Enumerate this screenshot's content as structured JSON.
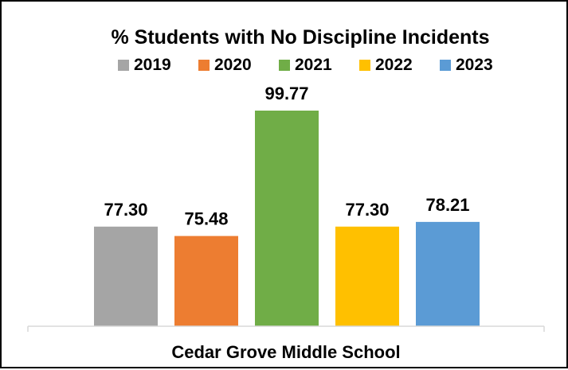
{
  "chart_data": {
    "type": "bar",
    "title": "% Students with No Discipline Incidents",
    "categories": [
      "Cedar Grove Middle School"
    ],
    "series": [
      {
        "name": "2019",
        "values": [
          77.3
        ],
        "label": "77.30",
        "color": "#A5A5A5"
      },
      {
        "name": "2020",
        "values": [
          75.48
        ],
        "label": "75.48",
        "color": "#ED7D31"
      },
      {
        "name": "2021",
        "values": [
          99.77
        ],
        "label": "99.77",
        "color": "#70AD47"
      },
      {
        "name": "2022",
        "values": [
          77.3
        ],
        "label": "77.30",
        "color": "#FFC000"
      },
      {
        "name": "2023",
        "values": [
          78.21
        ],
        "label": "78.21",
        "color": "#5B9BD5"
      }
    ],
    "ylim": [
      58,
      100
    ],
    "grid": false,
    "legend_position": "top",
    "xlabel": "",
    "ylabel": ""
  }
}
